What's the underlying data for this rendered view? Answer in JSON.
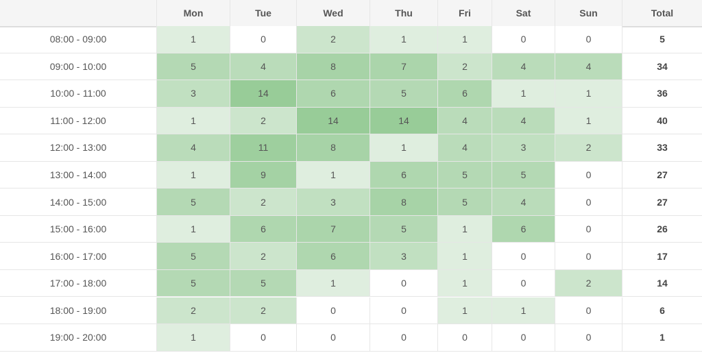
{
  "table": {
    "corner_label": "",
    "columns": [
      "Mon",
      "Tue",
      "Wed",
      "Thu",
      "Fri",
      "Sat",
      "Sun",
      "Total"
    ],
    "rows": [
      {
        "time": "08:00 - 09:00",
        "values": [
          "1",
          "0",
          "2",
          "1",
          "1",
          "0",
          "0"
        ],
        "total": "5"
      },
      {
        "time": "09:00 - 10:00",
        "values": [
          "5",
          "4",
          "8",
          "7",
          "2",
          "4",
          "4"
        ],
        "total": "34"
      },
      {
        "time": "10:00 - 11:00",
        "values": [
          "3",
          "14",
          "6",
          "5",
          "6",
          "1",
          "1"
        ],
        "total": "36"
      },
      {
        "time": "11:00 - 12:00",
        "values": [
          "1",
          "2",
          "14",
          "14",
          "4",
          "4",
          "1"
        ],
        "total": "40"
      },
      {
        "time": "12:00 - 13:00",
        "values": [
          "4",
          "11",
          "8",
          "1",
          "4",
          "3",
          "2"
        ],
        "total": "33"
      },
      {
        "time": "13:00 - 14:00",
        "values": [
          "1",
          "9",
          "1",
          "6",
          "5",
          "5",
          "0"
        ],
        "total": "27"
      },
      {
        "time": "14:00 - 15:00",
        "values": [
          "5",
          "2",
          "3",
          "8",
          "5",
          "4",
          "0"
        ],
        "total": "27"
      },
      {
        "time": "15:00 - 16:00",
        "values": [
          "1",
          "6",
          "7",
          "5",
          "1",
          "6",
          "0"
        ],
        "total": "26"
      },
      {
        "time": "16:00 - 17:00",
        "values": [
          "5",
          "2",
          "6",
          "3",
          "1",
          "0",
          "0"
        ],
        "total": "17"
      },
      {
        "time": "17:00 - 18:00",
        "values": [
          "5",
          "5",
          "1",
          "0",
          "1",
          "0",
          "2"
        ],
        "total": "14"
      },
      {
        "time": "18:00 - 19:00",
        "values": [
          "2",
          "2",
          "0",
          "0",
          "1",
          "1",
          "0"
        ],
        "total": "6"
      },
      {
        "time": "19:00 - 20:00",
        "values": [
          "1",
          "0",
          "0",
          "0",
          "0",
          "0",
          "0"
        ],
        "total": "1"
      }
    ]
  },
  "colors": {
    "header_bg": "#f5f5f5",
    "zero": "#ffffff",
    "scale_min": "#dfeedf",
    "scale_max": "#98cc98"
  }
}
